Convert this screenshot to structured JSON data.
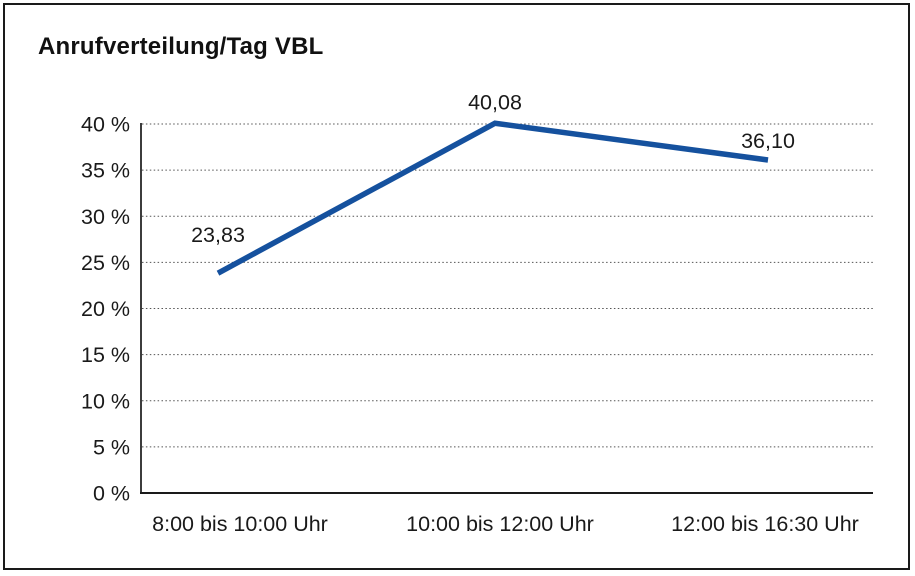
{
  "page": {
    "title": "Anrufverteilung/Tag VBL"
  },
  "chart_data": {
    "type": "line",
    "title": "Anrufverteilung/Tag VBL",
    "categories": [
      "8:00 bis 10:00 Uhr",
      "10:00 bis 12:00 Uhr",
      "12:00 bis 16:30 Uhr"
    ],
    "series": [
      {
        "name": "Anrufverteilung",
        "values": [
          23.83,
          40.08,
          36.1
        ]
      }
    ],
    "point_labels": [
      "23,83",
      "40,08",
      "36,10"
    ],
    "xlabel": "",
    "ylabel": "",
    "ylim": [
      0,
      40
    ],
    "ytick_step": 5,
    "ytick_labels": [
      "0 %",
      "5 %",
      "10 %",
      "15 %",
      "20 %",
      "25 %",
      "30 %",
      "35 %",
      "40 %"
    ],
    "grid": "horizontal-dotted",
    "legend": "none",
    "colors": {
      "line": "#15519e",
      "text": "#1a1a1a",
      "grid": "#555555",
      "axis": "#1a1a1a",
      "frame": "#1a1a1a",
      "background": "#ffffff"
    }
  }
}
